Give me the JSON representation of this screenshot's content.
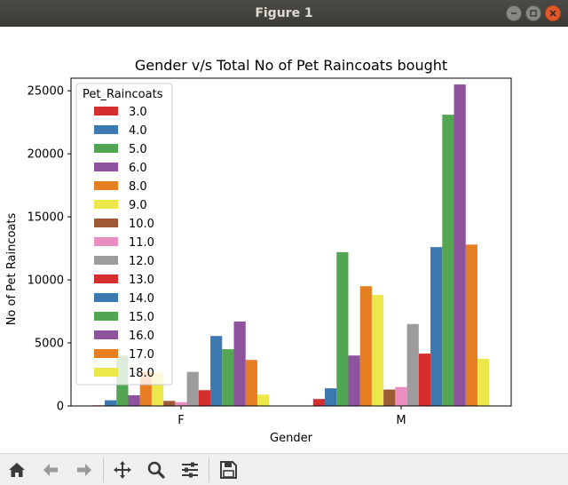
{
  "window": {
    "title": "Figure 1",
    "controls": [
      "minimize",
      "maximize",
      "close"
    ]
  },
  "toolbar": {
    "tools": [
      "home-icon",
      "back-icon",
      "forward-icon",
      "pan-icon",
      "zoom-icon",
      "configure-subplots-icon",
      "save-icon"
    ]
  },
  "chart_data": {
    "type": "bar",
    "title": "Gender v/s Total No of Pet Raincoats bought",
    "xlabel": "Gender",
    "ylabel": "No of Pet Raincoats",
    "categories": [
      "F",
      "M"
    ],
    "ylim": [
      0,
      26000
    ],
    "yticks": [
      0,
      5000,
      10000,
      15000,
      20000,
      25000
    ],
    "grid": false,
    "legend": {
      "title": "Pet_Raincoats",
      "placement": "upper-left"
    },
    "series": [
      {
        "name": "3.0",
        "color": "#d62d2f",
        "values": [
          50,
          550
        ]
      },
      {
        "name": "4.0",
        "color": "#3d79b1",
        "values": [
          450,
          1400
        ]
      },
      {
        "name": "5.0",
        "color": "#53a651",
        "values": [
          4000,
          12200
        ]
      },
      {
        "name": "6.0",
        "color": "#8e539d",
        "values": [
          850,
          4000
        ]
      },
      {
        "name": "8.0",
        "color": "#e67e22",
        "values": [
          2700,
          9500
        ]
      },
      {
        "name": "9.0",
        "color": "#ece84a",
        "values": [
          2650,
          8800
        ]
      },
      {
        "name": "10.0",
        "color": "#9e5a35",
        "values": [
          400,
          1300
        ]
      },
      {
        "name": "11.0",
        "color": "#ea8ec1",
        "values": [
          300,
          1500
        ]
      },
      {
        "name": "12.0",
        "color": "#9c9c9c",
        "values": [
          2700,
          6500
        ]
      },
      {
        "name": "13.0",
        "color": "#d62d2f",
        "values": [
          1250,
          4150
        ]
      },
      {
        "name": "14.0",
        "color": "#3d79b1",
        "values": [
          5550,
          12600
        ]
      },
      {
        "name": "15.0",
        "color": "#53a651",
        "values": [
          4500,
          23100
        ]
      },
      {
        "name": "16.0",
        "color": "#8e539d",
        "values": [
          6700,
          25500
        ]
      },
      {
        "name": "17.0",
        "color": "#e67e22",
        "values": [
          3650,
          12800
        ]
      },
      {
        "name": "18.0",
        "color": "#ece84a",
        "values": [
          900,
          3750
        ]
      }
    ]
  }
}
